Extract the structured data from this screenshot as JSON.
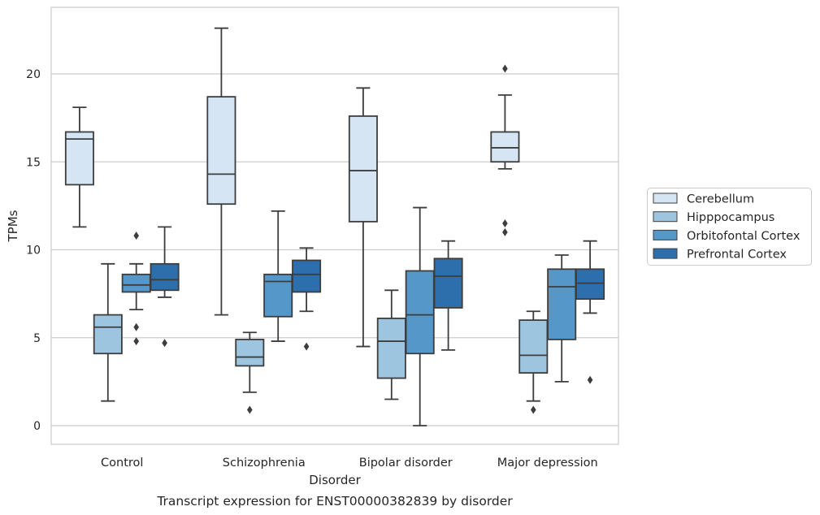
{
  "chart_data": {
    "type": "box",
    "title": "Transcript expression for ENST00000382839 by disorder",
    "xlabel": "Disorder",
    "ylabel": "TPMs",
    "ylim": [
      -1.1,
      23.8
    ],
    "yticks": [
      0,
      5,
      10,
      15,
      20
    ],
    "grid": true,
    "legend_position": "right",
    "categories": [
      "Control",
      "Schizophrenia",
      "Bipolar disorder",
      "Major depression"
    ],
    "series": [
      {
        "name": "Cerebellum",
        "color": "#d6e5f4",
        "boxes": [
          {
            "whislo": 11.3,
            "q1": 13.7,
            "med": 16.3,
            "q3": 16.7,
            "whishi": 18.1,
            "fliers": []
          },
          {
            "whislo": 6.3,
            "q1": 12.6,
            "med": 14.3,
            "q3": 18.7,
            "whishi": 22.6,
            "fliers": []
          },
          {
            "whislo": 4.5,
            "q1": 11.6,
            "med": 14.5,
            "q3": 17.6,
            "whishi": 19.2,
            "fliers": []
          },
          {
            "whislo": 14.6,
            "q1": 15.0,
            "med": 15.8,
            "q3": 16.7,
            "whishi": 18.8,
            "fliers": [
              20.3,
              11.5,
              11.0
            ]
          }
        ]
      },
      {
        "name": "Hipppocampus",
        "color": "#9dc5df",
        "boxes": [
          {
            "whislo": 1.4,
            "q1": 4.1,
            "med": 5.6,
            "q3": 6.3,
            "whishi": 9.2,
            "fliers": []
          },
          {
            "whislo": 1.9,
            "q1": 3.4,
            "med": 3.9,
            "q3": 4.9,
            "whishi": 5.3,
            "fliers": [
              0.9
            ]
          },
          {
            "whislo": 1.5,
            "q1": 2.7,
            "med": 4.8,
            "q3": 6.1,
            "whishi": 7.7,
            "fliers": []
          },
          {
            "whislo": 1.4,
            "q1": 3.0,
            "med": 4.0,
            "q3": 6.0,
            "whishi": 6.5,
            "fliers": [
              0.9
            ]
          }
        ]
      },
      {
        "name": "Orbitofontal Cortex",
        "color": "#5597c9",
        "boxes": [
          {
            "whislo": 6.6,
            "q1": 7.6,
            "med": 8.0,
            "q3": 8.6,
            "whishi": 9.2,
            "fliers": [
              10.8,
              5.6,
              4.8
            ]
          },
          {
            "whislo": 4.8,
            "q1": 6.2,
            "med": 8.2,
            "q3": 8.6,
            "whishi": 12.2,
            "fliers": []
          },
          {
            "whislo": 0.0,
            "q1": 4.1,
            "med": 6.3,
            "q3": 8.8,
            "whishi": 12.4,
            "fliers": []
          },
          {
            "whislo": 2.5,
            "q1": 4.9,
            "med": 7.9,
            "q3": 8.9,
            "whishi": 9.7,
            "fliers": []
          }
        ]
      },
      {
        "name": "Prefrontal Cortex",
        "color": "#2d6fad",
        "boxes": [
          {
            "whislo": 7.3,
            "q1": 7.7,
            "med": 8.3,
            "q3": 9.2,
            "whishi": 11.3,
            "fliers": [
              4.7
            ]
          },
          {
            "whislo": 6.5,
            "q1": 7.6,
            "med": 8.6,
            "q3": 9.4,
            "whishi": 10.1,
            "fliers": [
              4.5
            ]
          },
          {
            "whislo": 4.3,
            "q1": 6.7,
            "med": 8.5,
            "q3": 9.5,
            "whishi": 10.5,
            "fliers": []
          },
          {
            "whislo": 6.4,
            "q1": 7.2,
            "med": 8.1,
            "q3": 8.9,
            "whishi": 10.5,
            "fliers": [
              2.6
            ]
          }
        ]
      }
    ]
  }
}
